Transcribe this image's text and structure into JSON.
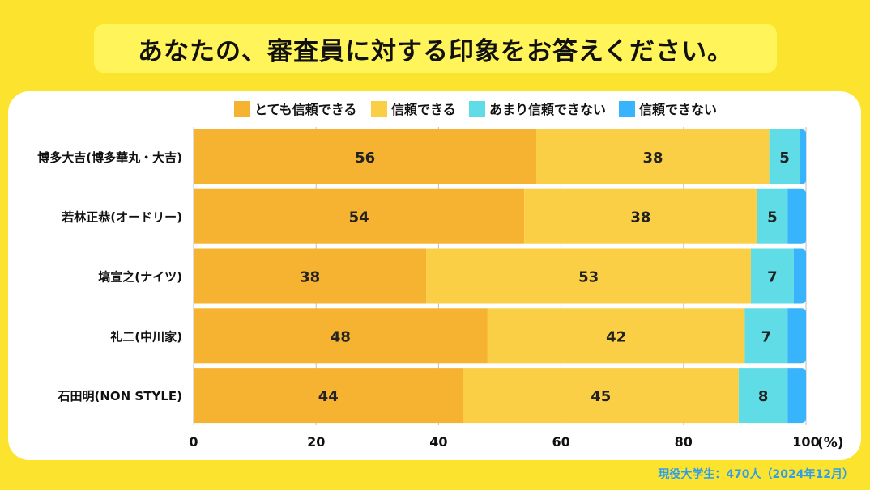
{
  "title": "あなたの、審査員に対する印象をお答えください。",
  "footnote": "現役大学生：470人（2024年12月）",
  "colors": {
    "very_trust": "#F5B331",
    "trust": "#FBCF45",
    "not_much": "#5FDCE6",
    "no_trust": "#37B4FB",
    "grid": "#BEBEBE",
    "background": "#FBE32E"
  },
  "chart_data": {
    "type": "bar",
    "orientation": "horizontal",
    "stacked": true,
    "categories": [
      "博多大吉(博多華丸・大吉)",
      "若林正恭(オードリー)",
      "塙宣之(ナイツ)",
      "礼二(中川家)",
      "石田明(NON STYLE)"
    ],
    "series": [
      {
        "name": "とても信頼できる",
        "color": "#F5B331",
        "values": [
          56,
          54,
          38,
          48,
          44
        ]
      },
      {
        "name": "信頼できる",
        "color": "#FBCF45",
        "values": [
          38,
          38,
          53,
          42,
          45
        ]
      },
      {
        "name": "あまり信頼できない",
        "color": "#5FDCE6",
        "values": [
          5,
          5,
          7,
          7,
          8
        ]
      },
      {
        "name": "信頼できない",
        "color": "#37B4FB",
        "values": [
          1,
          3,
          2,
          3,
          3
        ]
      }
    ],
    "data_labels_shown_for": [
      "とても信頼できる",
      "信頼できる",
      "あまり信頼できない"
    ],
    "xlim": [
      0,
      100
    ],
    "xticks": [
      0,
      20,
      40,
      60,
      80,
      100
    ],
    "xunit": "(%)",
    "grid": "vertical",
    "legend_position": "top"
  }
}
